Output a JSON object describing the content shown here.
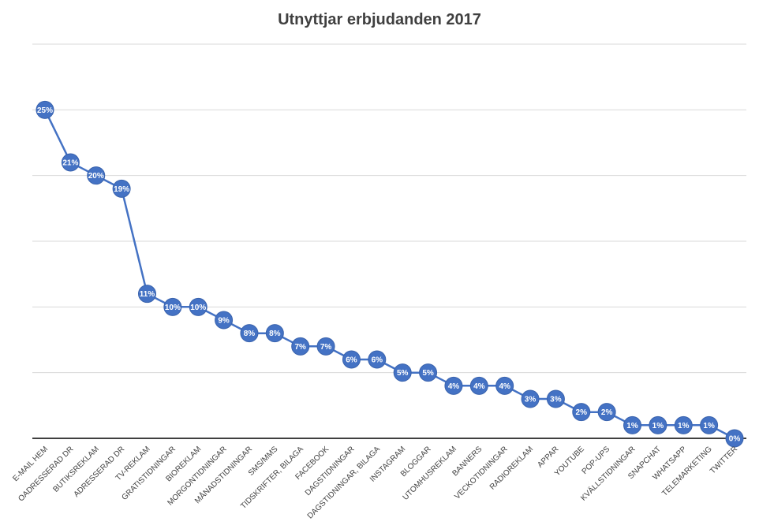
{
  "chart_data": {
    "type": "line",
    "title": "Utnyttjar erbjudanden 2017",
    "xlabel": "",
    "ylabel": "",
    "ylim": [
      0,
      30
    ],
    "grid": true,
    "legend": "none",
    "colors": {
      "series": "#4472c4",
      "grid": "#d9d9d9",
      "axis": "#000000",
      "text": "#404040"
    },
    "categories": [
      "E-MAIL HEM",
      "OADRESSERAD DR",
      "BUTIKSREKLAM",
      "ADRESSERAD DR",
      "TV-REKLAM",
      "GRATISTIDNINGAR",
      "BIOREKLAM",
      "MORGONTIDNINGAR",
      "MÅNADSTIDNINGAR",
      "SMS/MMS",
      "TIDSKRIFTER, BILAGA",
      "FACEBOOK",
      "DAGSTIDNINGAR",
      "DAGSTIDNINGAR, BILAGA",
      "INSTAGRAM",
      "BLOGGAR",
      "UTOMHUSREKLAM",
      "BANNERS",
      "VECKOTIDNINGAR",
      "RADIOREKLAM",
      "APPAR",
      "YOUTUBE",
      "POP-UPS",
      "KVÄLLSTIDNINGAR",
      "SNAPCHAT",
      "WHATSAPP",
      "TELEMARKETING",
      "TWITTER"
    ],
    "series": [
      {
        "values": [
          25,
          21,
          20,
          19,
          11,
          10,
          10,
          9,
          8,
          8,
          7,
          7,
          6,
          6,
          5,
          5,
          4,
          4,
          4,
          3,
          3,
          2,
          2,
          1,
          1,
          1,
          1,
          0
        ]
      }
    ],
    "value_labels": [
      "25%",
      "21%",
      "20%",
      "19%",
      "11%",
      "10%",
      "10%",
      "9%",
      "8%",
      "8%",
      "7%",
      "7%",
      "6%",
      "6%",
      "5%",
      "5%",
      "4%",
      "4%",
      "4%",
      "3%",
      "3%",
      "2%",
      "2%",
      "1%",
      "1%",
      "1%",
      "1%",
      "0%"
    ]
  }
}
